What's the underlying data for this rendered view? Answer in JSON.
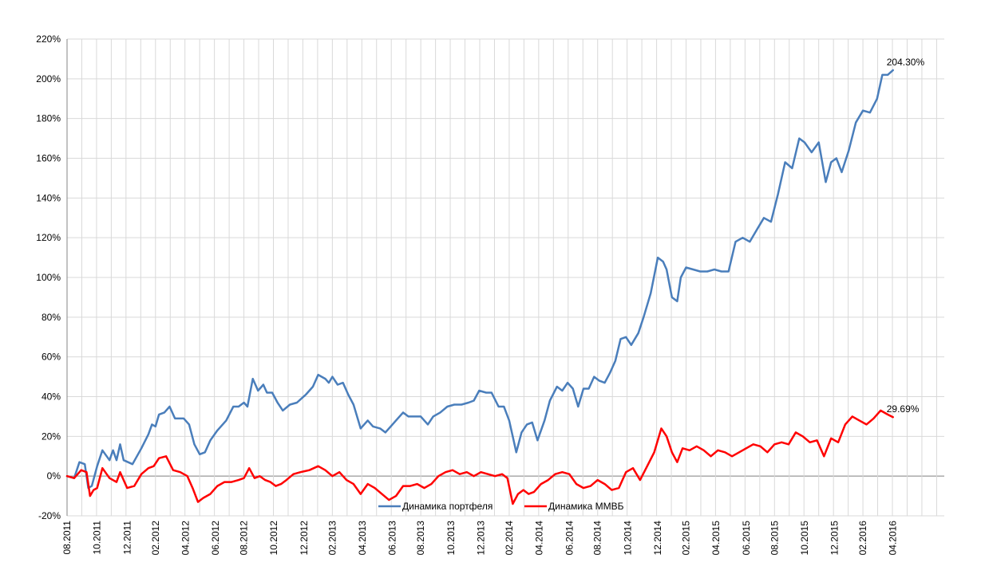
{
  "chart_data": {
    "type": "line",
    "ylim": [
      -20,
      220
    ],
    "ytick_labels": [
      "220%",
      "200%",
      "180%",
      "160%",
      "140%",
      "120%",
      "100%",
      "80%",
      "60%",
      "40%",
      "20%",
      "0%",
      "-20%"
    ],
    "yticks": [
      220,
      200,
      180,
      160,
      140,
      120,
      100,
      80,
      60,
      40,
      20,
      0,
      -20
    ],
    "x_range": [
      2011.58,
      2016.54
    ],
    "grid": true,
    "legend_placement": "bottom-center",
    "xtick_labels": [
      "08.2011",
      "10.2011",
      "12.2011",
      "02.2012",
      "04.2012",
      "06.2012",
      "08.2012",
      "10.2012",
      "12.2012",
      "02.2013",
      "04.2013",
      "06.2013",
      "08.2013",
      "10.2013",
      "12.2013",
      "02.2014",
      "04.2014",
      "06.2014",
      "08.2014",
      "10.2014",
      "12.2014",
      "02.2015",
      "04.2015",
      "06.2015",
      "08.2015",
      "10.2015",
      "12.2015",
      "02.2016",
      "04.2016"
    ],
    "xticks": [
      2011.58,
      2011.75,
      2011.92,
      2012.08,
      2012.25,
      2012.42,
      2012.58,
      2012.75,
      2012.92,
      2013.08,
      2013.25,
      2013.42,
      2013.58,
      2013.75,
      2013.92,
      2014.08,
      2014.25,
      2014.42,
      2014.58,
      2014.75,
      2014.92,
      2015.08,
      2015.25,
      2015.42,
      2015.58,
      2015.75,
      2015.92,
      2016.08,
      2016.25
    ],
    "series": [
      {
        "name": "Динамика портфеля",
        "color": "#4a7ebb",
        "end_label": "204.30%",
        "points": [
          [
            2011.58,
            0
          ],
          [
            2011.62,
            -1
          ],
          [
            2011.65,
            7
          ],
          [
            2011.68,
            6
          ],
          [
            2011.7,
            -6
          ],
          [
            2011.72,
            -5
          ],
          [
            2011.75,
            5
          ],
          [
            2011.78,
            13
          ],
          [
            2011.82,
            8
          ],
          [
            2011.84,
            13
          ],
          [
            2011.86,
            8
          ],
          [
            2011.88,
            16
          ],
          [
            2011.9,
            8
          ],
          [
            2011.95,
            6
          ],
          [
            2012.0,
            14
          ],
          [
            2012.04,
            21
          ],
          [
            2012.06,
            26
          ],
          [
            2012.08,
            25
          ],
          [
            2012.1,
            31
          ],
          [
            2012.13,
            32
          ],
          [
            2012.16,
            35
          ],
          [
            2012.19,
            29
          ],
          [
            2012.24,
            29
          ],
          [
            2012.27,
            26
          ],
          [
            2012.3,
            16
          ],
          [
            2012.33,
            11
          ],
          [
            2012.36,
            12
          ],
          [
            2012.39,
            18
          ],
          [
            2012.43,
            23
          ],
          [
            2012.48,
            28
          ],
          [
            2012.52,
            35
          ],
          [
            2012.55,
            35
          ],
          [
            2012.58,
            37
          ],
          [
            2012.6,
            35
          ],
          [
            2012.63,
            49
          ],
          [
            2012.66,
            43
          ],
          [
            2012.69,
            46
          ],
          [
            2012.71,
            42
          ],
          [
            2012.74,
            42
          ],
          [
            2012.77,
            37
          ],
          [
            2012.8,
            33
          ],
          [
            2012.84,
            36
          ],
          [
            2012.88,
            37
          ],
          [
            2012.93,
            41
          ],
          [
            2012.97,
            45
          ],
          [
            2013.0,
            51
          ],
          [
            2013.04,
            49
          ],
          [
            2013.06,
            47
          ],
          [
            2013.08,
            50
          ],
          [
            2013.11,
            46
          ],
          [
            2013.14,
            47
          ],
          [
            2013.17,
            41
          ],
          [
            2013.2,
            36
          ],
          [
            2013.24,
            24
          ],
          [
            2013.28,
            28
          ],
          [
            2013.31,
            25
          ],
          [
            2013.35,
            24
          ],
          [
            2013.38,
            22
          ],
          [
            2013.42,
            26
          ],
          [
            2013.45,
            29
          ],
          [
            2013.48,
            32
          ],
          [
            2013.51,
            30
          ],
          [
            2013.55,
            30
          ],
          [
            2013.58,
            30
          ],
          [
            2013.62,
            26
          ],
          [
            2013.65,
            30
          ],
          [
            2013.69,
            32
          ],
          [
            2013.73,
            35
          ],
          [
            2013.77,
            36
          ],
          [
            2013.81,
            36
          ],
          [
            2013.85,
            37
          ],
          [
            2013.88,
            38
          ],
          [
            2013.91,
            43
          ],
          [
            2013.95,
            42
          ],
          [
            2013.98,
            42
          ],
          [
            2014.02,
            35
          ],
          [
            2014.05,
            35
          ],
          [
            2014.08,
            28
          ],
          [
            2014.12,
            12
          ],
          [
            2014.15,
            22
          ],
          [
            2014.18,
            26
          ],
          [
            2014.21,
            27
          ],
          [
            2014.24,
            18
          ],
          [
            2014.28,
            28
          ],
          [
            2014.31,
            38
          ],
          [
            2014.35,
            45
          ],
          [
            2014.38,
            43
          ],
          [
            2014.41,
            47
          ],
          [
            2014.44,
            44
          ],
          [
            2014.47,
            35
          ],
          [
            2014.5,
            44
          ],
          [
            2014.53,
            44
          ],
          [
            2014.56,
            50
          ],
          [
            2014.59,
            48
          ],
          [
            2014.62,
            47
          ],
          [
            2014.65,
            52
          ],
          [
            2014.68,
            58
          ],
          [
            2014.71,
            69
          ],
          [
            2014.74,
            70
          ],
          [
            2014.77,
            66
          ],
          [
            2014.81,
            72
          ],
          [
            2014.84,
            80
          ],
          [
            2014.88,
            92
          ],
          [
            2014.92,
            110
          ],
          [
            2014.95,
            108
          ],
          [
            2014.97,
            104
          ],
          [
            2015.0,
            90
          ],
          [
            2015.03,
            88
          ],
          [
            2015.05,
            100
          ],
          [
            2015.08,
            105
          ],
          [
            2015.12,
            104
          ],
          [
            2015.16,
            103
          ],
          [
            2015.2,
            103
          ],
          [
            2015.24,
            104
          ],
          [
            2015.28,
            103
          ],
          [
            2015.32,
            103
          ],
          [
            2015.36,
            118
          ],
          [
            2015.4,
            120
          ],
          [
            2015.44,
            118
          ],
          [
            2015.48,
            124
          ],
          [
            2015.52,
            130
          ],
          [
            2015.56,
            128
          ],
          [
            2015.6,
            142
          ],
          [
            2015.64,
            158
          ],
          [
            2015.68,
            155
          ],
          [
            2015.72,
            170
          ],
          [
            2015.75,
            168
          ],
          [
            2015.79,
            163
          ],
          [
            2015.83,
            168
          ],
          [
            2015.87,
            148
          ],
          [
            2015.9,
            158
          ],
          [
            2015.93,
            160
          ],
          [
            2015.96,
            153
          ],
          [
            2016.0,
            164
          ],
          [
            2016.04,
            178
          ],
          [
            2016.08,
            184
          ],
          [
            2016.12,
            183
          ],
          [
            2016.16,
            190
          ],
          [
            2016.19,
            202
          ],
          [
            2016.22,
            202
          ],
          [
            2016.25,
            204.3
          ]
        ]
      },
      {
        "name": "Динамика ММВБ",
        "color": "#ff0000",
        "end_label": "29.69%",
        "points": [
          [
            2011.58,
            0
          ],
          [
            2011.62,
            -1
          ],
          [
            2011.66,
            3
          ],
          [
            2011.69,
            2
          ],
          [
            2011.71,
            -10
          ],
          [
            2011.73,
            -7
          ],
          [
            2011.75,
            -6
          ],
          [
            2011.78,
            4
          ],
          [
            2011.82,
            -1
          ],
          [
            2011.86,
            -3
          ],
          [
            2011.88,
            2
          ],
          [
            2011.92,
            -6
          ],
          [
            2011.96,
            -5
          ],
          [
            2012.0,
            1
          ],
          [
            2012.04,
            4
          ],
          [
            2012.07,
            5
          ],
          [
            2012.1,
            9
          ],
          [
            2012.14,
            10
          ],
          [
            2012.18,
            3
          ],
          [
            2012.22,
            2
          ],
          [
            2012.26,
            0
          ],
          [
            2012.29,
            -6
          ],
          [
            2012.32,
            -13
          ],
          [
            2012.35,
            -11
          ],
          [
            2012.39,
            -9
          ],
          [
            2012.43,
            -5
          ],
          [
            2012.47,
            -3
          ],
          [
            2012.51,
            -3
          ],
          [
            2012.55,
            -2
          ],
          [
            2012.58,
            -1
          ],
          [
            2012.61,
            4
          ],
          [
            2012.64,
            -1
          ],
          [
            2012.67,
            0
          ],
          [
            2012.7,
            -2
          ],
          [
            2012.73,
            -3
          ],
          [
            2012.76,
            -5
          ],
          [
            2012.79,
            -4
          ],
          [
            2012.82,
            -2
          ],
          [
            2012.86,
            1
          ],
          [
            2012.9,
            2
          ],
          [
            2012.95,
            3
          ],
          [
            2013.0,
            5
          ],
          [
            2013.04,
            3
          ],
          [
            2013.08,
            0
          ],
          [
            2013.12,
            2
          ],
          [
            2013.16,
            -2
          ],
          [
            2013.2,
            -4
          ],
          [
            2013.24,
            -9
          ],
          [
            2013.28,
            -4
          ],
          [
            2013.32,
            -6
          ],
          [
            2013.36,
            -9
          ],
          [
            2013.4,
            -12
          ],
          [
            2013.44,
            -10
          ],
          [
            2013.48,
            -5
          ],
          [
            2013.52,
            -5
          ],
          [
            2013.56,
            -4
          ],
          [
            2013.6,
            -6
          ],
          [
            2013.64,
            -4
          ],
          [
            2013.68,
            0
          ],
          [
            2013.72,
            2
          ],
          [
            2013.76,
            3
          ],
          [
            2013.8,
            1
          ],
          [
            2013.84,
            2
          ],
          [
            2013.88,
            0
          ],
          [
            2013.92,
            2
          ],
          [
            2013.96,
            1
          ],
          [
            2014.0,
            0
          ],
          [
            2014.04,
            1
          ],
          [
            2014.07,
            -1
          ],
          [
            2014.1,
            -14
          ],
          [
            2014.13,
            -9
          ],
          [
            2014.16,
            -7
          ],
          [
            2014.19,
            -9
          ],
          [
            2014.22,
            -8
          ],
          [
            2014.26,
            -4
          ],
          [
            2014.3,
            -2
          ],
          [
            2014.34,
            1
          ],
          [
            2014.38,
            2
          ],
          [
            2014.42,
            1
          ],
          [
            2014.46,
            -4
          ],
          [
            2014.5,
            -6
          ],
          [
            2014.54,
            -5
          ],
          [
            2014.58,
            -2
          ],
          [
            2014.62,
            -4
          ],
          [
            2014.66,
            -7
          ],
          [
            2014.7,
            -6
          ],
          [
            2014.74,
            2
          ],
          [
            2014.78,
            4
          ],
          [
            2014.82,
            -2
          ],
          [
            2014.86,
            5
          ],
          [
            2014.9,
            12
          ],
          [
            2014.94,
            24
          ],
          [
            2014.97,
            20
          ],
          [
            2015.0,
            12
          ],
          [
            2015.03,
            7
          ],
          [
            2015.06,
            14
          ],
          [
            2015.1,
            13
          ],
          [
            2015.14,
            15
          ],
          [
            2015.18,
            13
          ],
          [
            2015.22,
            10
          ],
          [
            2015.26,
            13
          ],
          [
            2015.3,
            12
          ],
          [
            2015.34,
            10
          ],
          [
            2015.38,
            12
          ],
          [
            2015.42,
            14
          ],
          [
            2015.46,
            16
          ],
          [
            2015.5,
            15
          ],
          [
            2015.54,
            12
          ],
          [
            2015.58,
            16
          ],
          [
            2015.62,
            17
          ],
          [
            2015.66,
            16
          ],
          [
            2015.7,
            22
          ],
          [
            2015.74,
            20
          ],
          [
            2015.78,
            17
          ],
          [
            2015.82,
            18
          ],
          [
            2015.86,
            10
          ],
          [
            2015.9,
            19
          ],
          [
            2015.94,
            17
          ],
          [
            2015.98,
            26
          ],
          [
            2016.02,
            30
          ],
          [
            2016.06,
            28
          ],
          [
            2016.1,
            26
          ],
          [
            2016.14,
            29
          ],
          [
            2016.18,
            33
          ],
          [
            2016.22,
            31
          ],
          [
            2016.25,
            29.69
          ]
        ]
      }
    ]
  }
}
